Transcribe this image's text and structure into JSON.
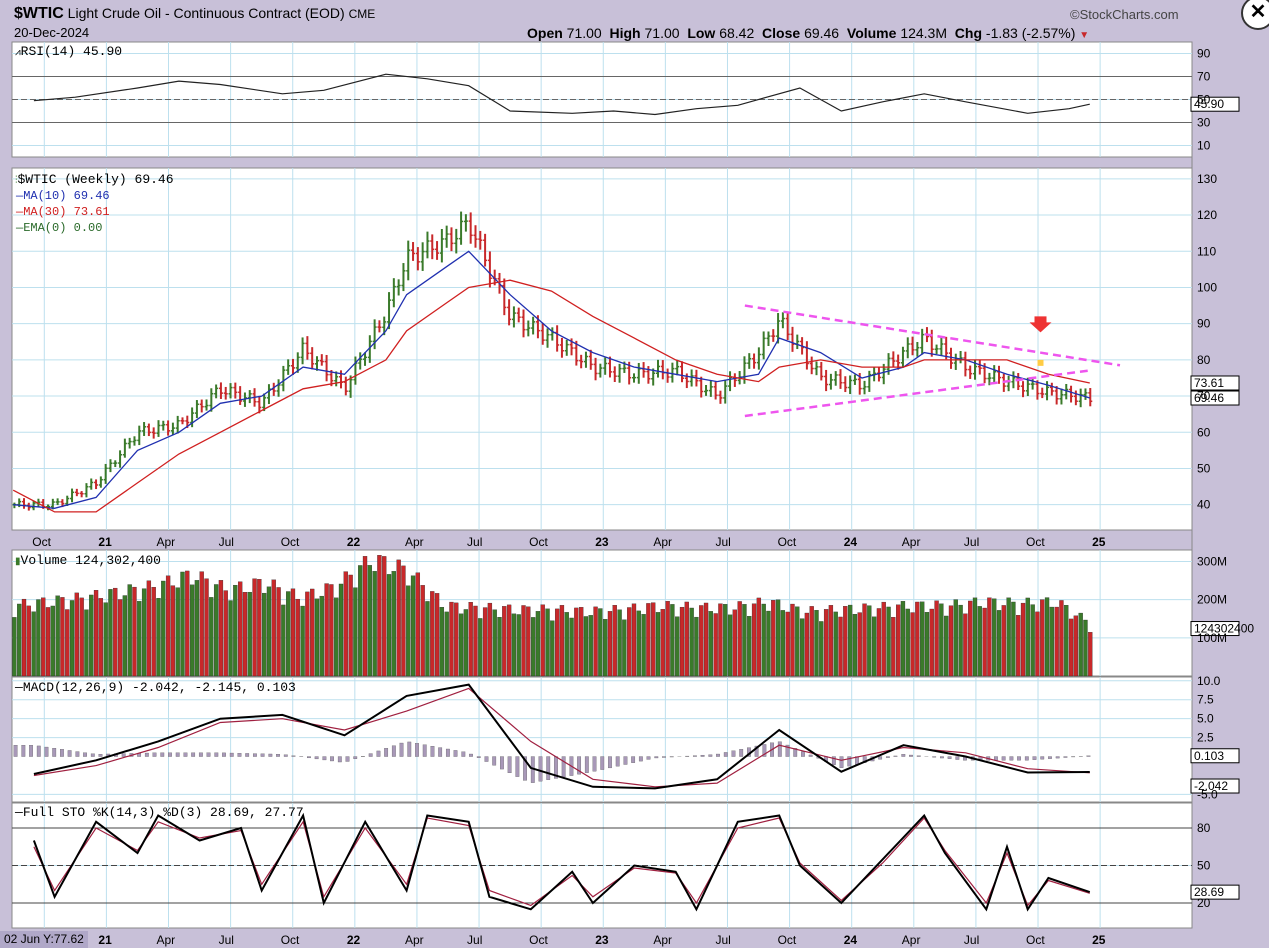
{
  "header": {
    "symbol": "$WTIC",
    "name": "Light Crude Oil - Continuous Contract (EOD)",
    "exchange": "CME",
    "date": "20-Dec-2024",
    "watermark": "©StockCharts.com",
    "open_label": "Open",
    "open": "71.00",
    "high_label": "High",
    "high": "71.00",
    "low_label": "Low",
    "low": "68.42",
    "close_label": "Close",
    "close": "69.46",
    "volume_label": "Volume",
    "volume": "124.3M",
    "chg_label": "Chg",
    "chg": "-1.83 (-2.57%)",
    "close_icon": "close-icon"
  },
  "bottom_readout": "02 Jun Y:77.62",
  "colors": {
    "up": "#3a7a2a",
    "down": "#c8282a",
    "ma10": "#2030b0",
    "ma30": "#d02020",
    "trend": "#ee55ee",
    "marker": "#ee3333",
    "grid": "#bde0ee"
  },
  "chart_data": [
    {
      "type": "line",
      "title": "RSI(14) 45.90",
      "last_label": "45.90",
      "ylim": [
        0,
        100
      ],
      "y_ticks": [
        10,
        30,
        50,
        70,
        90
      ],
      "reference_lines": [
        30,
        50,
        70
      ],
      "x": [
        "2020-09",
        "2020-11",
        "2021-02",
        "2021-04",
        "2021-06",
        "2021-09",
        "2021-11",
        "2022-02",
        "2022-04",
        "2022-06",
        "2022-08",
        "2022-11",
        "2023-01",
        "2023-03",
        "2023-05",
        "2023-07",
        "2023-10",
        "2023-12",
        "2024-02",
        "2024-04",
        "2024-06",
        "2024-09",
        "2024-11",
        "2024-12"
      ],
      "values": [
        49,
        52,
        60,
        66,
        63,
        55,
        58,
        72,
        68,
        62,
        40,
        38,
        40,
        37,
        42,
        45,
        60,
        40,
        48,
        55,
        48,
        38,
        42,
        45.9
      ]
    },
    {
      "type": "bar",
      "title": "$WTIC (Weekly) 69.46",
      "legend": [
        "MA(10) 69.46",
        "MA(30) 73.61",
        "EMA(0) 0.00"
      ],
      "legend_placement": "top-left",
      "last_labels": [
        "73.61",
        "69.46"
      ],
      "ylim": [
        33,
        133
      ],
      "y_ticks": [
        40,
        50,
        60,
        70,
        80,
        90,
        100,
        110,
        120,
        130
      ],
      "x_ticks": [
        "Oct",
        "21",
        "Apr",
        "Jul",
        "Oct",
        "22",
        "Apr",
        "Jul",
        "Oct",
        "23",
        "Apr",
        "Jul",
        "Oct",
        "24",
        "Apr",
        "Jul",
        "Oct",
        "25"
      ],
      "x": [
        "2020-08",
        "2020-10",
        "2020-12",
        "2021-02",
        "2021-04",
        "2021-06",
        "2021-08",
        "2021-10",
        "2021-12",
        "2022-02",
        "2022-03",
        "2022-05",
        "2022-06",
        "2022-08",
        "2022-10",
        "2022-12",
        "2023-02",
        "2023-04",
        "2023-06",
        "2023-08",
        "2023-09",
        "2023-11",
        "2024-01",
        "2024-03",
        "2024-04",
        "2024-06",
        "2024-08",
        "2024-10",
        "2024-12"
      ],
      "values": [
        40,
        40,
        46,
        60,
        62,
        72,
        68,
        83,
        72,
        93,
        108,
        113,
        118,
        92,
        86,
        78,
        76,
        77,
        70,
        82,
        91,
        75,
        73,
        82,
        86,
        78,
        74,
        71,
        69.46
      ],
      "series": [
        {
          "name": "MA(10) 69.46",
          "values": [
            40,
            39,
            42,
            55,
            60,
            68,
            70,
            78,
            76,
            88,
            98,
            106,
            110,
            98,
            88,
            82,
            78,
            76,
            74,
            76,
            86,
            82,
            75,
            78,
            82,
            80,
            76,
            73,
            69.46
          ]
        },
        {
          "name": "MA(30) 73.61",
          "values": [
            44,
            38,
            38,
            46,
            54,
            60,
            66,
            72,
            74,
            80,
            88,
            96,
            100,
            102,
            99,
            92,
            86,
            80,
            76,
            74,
            78,
            80,
            78,
            78,
            80,
            80,
            80,
            76,
            73.61
          ]
        }
      ]
    },
    {
      "type": "bar",
      "title": "Volume 124,302,400",
      "last_label": "124302400",
      "ylim": [
        0,
        330
      ],
      "y_ticks": [
        "100M",
        "200M",
        "300M"
      ],
      "values": [
        180,
        190,
        200,
        215,
        230,
        260,
        220,
        240,
        200,
        230,
        300,
        270,
        180,
        175,
        170,
        170,
        165,
        170,
        180,
        175,
        175,
        190,
        165,
        170,
        175,
        180,
        180,
        190,
        185,
        190,
        130
      ]
    },
    {
      "type": "line",
      "title": "MACD(12,26,9) -2.042, -2.145, 0.103",
      "last_labels": [
        "0.103",
        "-2.042"
      ],
      "ylim": [
        -6,
        10.5
      ],
      "y_ticks": [
        -5.0,
        2.5,
        5.0,
        7.5,
        10.0
      ],
      "x": [
        "2020-09",
        "2020-12",
        "2021-03",
        "2021-06",
        "2021-09",
        "2021-12",
        "2022-03",
        "2022-06",
        "2022-09",
        "2022-12",
        "2023-03",
        "2023-06",
        "2023-09",
        "2023-12",
        "2024-03",
        "2024-06",
        "2024-09",
        "2024-12"
      ],
      "series": [
        {
          "name": "MACD",
          "values": [
            -2.3,
            -0.5,
            2,
            5,
            5.5,
            2.8,
            8,
            9.5,
            -1.5,
            -4,
            -4.2,
            -3,
            3.5,
            -2,
            1.5,
            0,
            -2.1,
            -2.042
          ]
        },
        {
          "name": "Signal",
          "values": [
            -2.5,
            -1.2,
            1.2,
            4.5,
            5,
            3.5,
            6,
            9,
            2,
            -3,
            -4,
            -3.5,
            1.5,
            -0.5,
            1.2,
            0.5,
            -1.6,
            -2.145
          ]
        },
        {
          "name": "Histogram",
          "values": [
            1.5,
            0.3,
            0.5,
            0.5,
            0.3,
            -0.8,
            2,
            0.5,
            -3.5,
            -2,
            -0.2,
            0.3,
            2,
            -1.5,
            0.3,
            -0.5,
            -0.5,
            0.103
          ]
        }
      ]
    },
    {
      "type": "line",
      "title": "Full STO %K(14,3) %D(3) 28.69, 27.77",
      "last_label": "28.69",
      "ylim": [
        0,
        100
      ],
      "y_ticks": [
        20,
        50,
        80
      ],
      "reference_lines": [
        20,
        50,
        80
      ],
      "x_ticks": [
        "21",
        "Apr",
        "Jul",
        "Oct",
        "22",
        "Apr",
        "Jul",
        "Oct",
        "23",
        "Apr",
        "Jul",
        "Oct",
        "24",
        "Apr",
        "Jul",
        "Oct",
        "25"
      ],
      "x": [
        "2020-09",
        "2020-10",
        "2020-12",
        "2021-02",
        "2021-03",
        "2021-05",
        "2021-07",
        "2021-08",
        "2021-10",
        "2021-11",
        "2022-01",
        "2022-03",
        "2022-04",
        "2022-06",
        "2022-07",
        "2022-09",
        "2022-11",
        "2022-12",
        "2023-02",
        "2023-04",
        "2023-05",
        "2023-07",
        "2023-09",
        "2023-10",
        "2023-12",
        "2024-02",
        "2024-04",
        "2024-05",
        "2024-07",
        "2024-08",
        "2024-09",
        "2024-10",
        "2024-12"
      ],
      "series": [
        {
          "name": "%K",
          "values": [
            70,
            25,
            85,
            60,
            90,
            70,
            80,
            30,
            90,
            20,
            85,
            30,
            90,
            85,
            25,
            15,
            45,
            20,
            50,
            45,
            15,
            85,
            90,
            50,
            20,
            55,
            90,
            60,
            15,
            65,
            15,
            40,
            28.69
          ]
        },
        {
          "name": "%D",
          "values": [
            65,
            30,
            80,
            62,
            85,
            72,
            78,
            35,
            85,
            25,
            80,
            35,
            88,
            82,
            30,
            18,
            42,
            25,
            48,
            44,
            20,
            80,
            88,
            52,
            22,
            52,
            88,
            62,
            20,
            60,
            18,
            38,
            27.77
          ]
        }
      ]
    }
  ]
}
